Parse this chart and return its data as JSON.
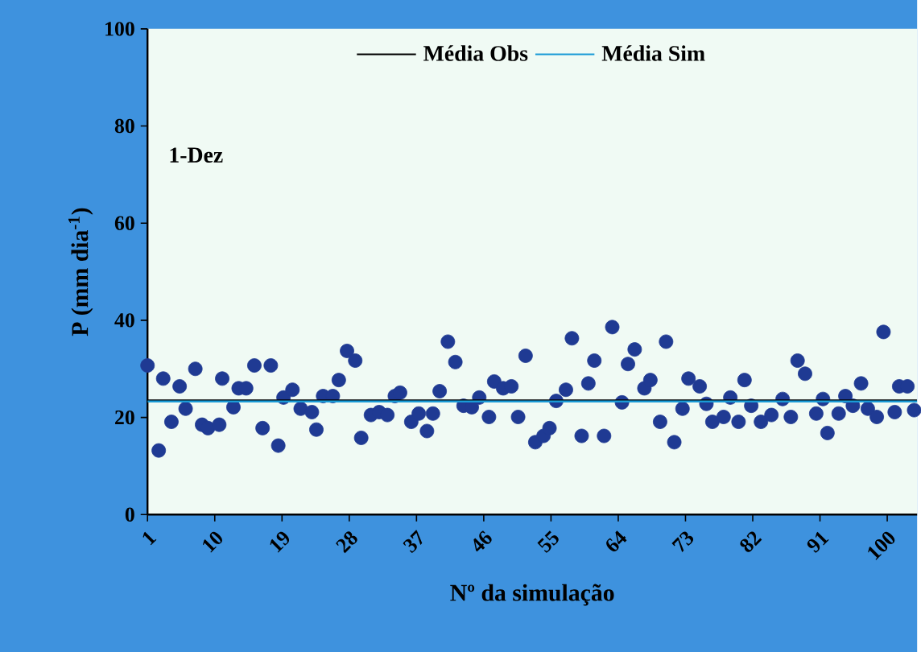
{
  "chart_data": {
    "type": "scatter",
    "xlabel": "Nº da simulação",
    "ylabel": "P (mm dia$^{-1}$)",
    "annotations": [
      "1-Dez"
    ],
    "xlim": [
      1,
      104
    ],
    "ylim": [
      0,
      100
    ],
    "xticks": [
      1,
      10,
      19,
      28,
      37,
      46,
      55,
      64,
      73,
      82,
      91,
      100
    ],
    "yticks": [
      0,
      20,
      40,
      60,
      80,
      100
    ],
    "marker": "circle",
    "legend": "top",
    "ref_lines": [
      {
        "axis": "y",
        "value": 23.5,
        "label": "Média Obs",
        "color": "#000000"
      },
      {
        "axis": "y",
        "value": 23.3,
        "label": "Média Sim",
        "color": "#1a9ad6"
      }
    ],
    "series": [
      {
        "color": "#1f3a93",
        "x": [
          1.0,
          2.5,
          3.1,
          4.2,
          5.3,
          6.1,
          7.4,
          8.3,
          9.1,
          10.6,
          11.0,
          12.5,
          13.2,
          14.2,
          15.3,
          16.4,
          17.5,
          18.5,
          19.2,
          20.4,
          21.5,
          23.0,
          23.6,
          24.5,
          25.8,
          26.6,
          27.7,
          28.8,
          29.6,
          30.9,
          32.0,
          33.1,
          34.1,
          34.8,
          36.3,
          37.3,
          38.4,
          39.2,
          40.1,
          41.2,
          42.2,
          43.3,
          44.4,
          45.4,
          46.7,
          47.4,
          48.6,
          49.7,
          50.6,
          51.6,
          52.9,
          54.0,
          54.8,
          55.7,
          57.0,
          57.8,
          59.1,
          60.0,
          60.8,
          62.1,
          63.2,
          64.5,
          65.3,
          66.2,
          67.5,
          68.3,
          69.6,
          70.4,
          71.5,
          72.6,
          73.4,
          74.9,
          75.8,
          76.6,
          78.1,
          79.0,
          80.1,
          80.9,
          81.8,
          83.1,
          84.5,
          86.0,
          87.1,
          88.0,
          89.0,
          90.5,
          91.4,
          92.0,
          93.5,
          94.4,
          95.4,
          96.5,
          97.4,
          98.6,
          99.5,
          101.0,
          101.6,
          102.7,
          103.6
        ],
        "values": [
          30.7,
          13.2,
          28,
          19.1,
          26.4,
          21.8,
          30,
          18.5,
          17.8,
          18.5,
          28,
          22.1,
          26,
          26,
          30.7,
          17.8,
          30.7,
          14.2,
          24.1,
          25.7,
          21.8,
          21.1,
          17.5,
          24.4,
          24.4,
          27.7,
          33.7,
          31.7,
          15.8,
          20.5,
          21.1,
          20.5,
          24.4,
          25.1,
          19.1,
          20.8,
          17.2,
          20.8,
          25.4,
          35.6,
          31.4,
          22.4,
          22.1,
          24.1,
          20.1,
          27.4,
          26,
          26.4,
          20.1,
          32.7,
          14.9,
          16.2,
          17.8,
          23.4,
          25.7,
          36.3,
          16.2,
          27,
          31.7,
          16.2,
          38.6,
          23.1,
          31,
          34,
          26,
          27.7,
          19.1,
          35.6,
          14.9,
          21.8,
          28,
          26.4,
          22.8,
          19.1,
          20.1,
          24.1,
          19.1,
          27.7,
          22.4,
          19.1,
          20.5,
          23.8,
          20.1,
          31.7,
          29,
          20.8,
          23.8,
          16.8,
          20.8,
          24.4,
          22.4,
          27,
          21.8,
          20.1,
          37.6,
          21.1,
          26.4,
          26.4,
          21.5
        ]
      }
    ]
  }
}
